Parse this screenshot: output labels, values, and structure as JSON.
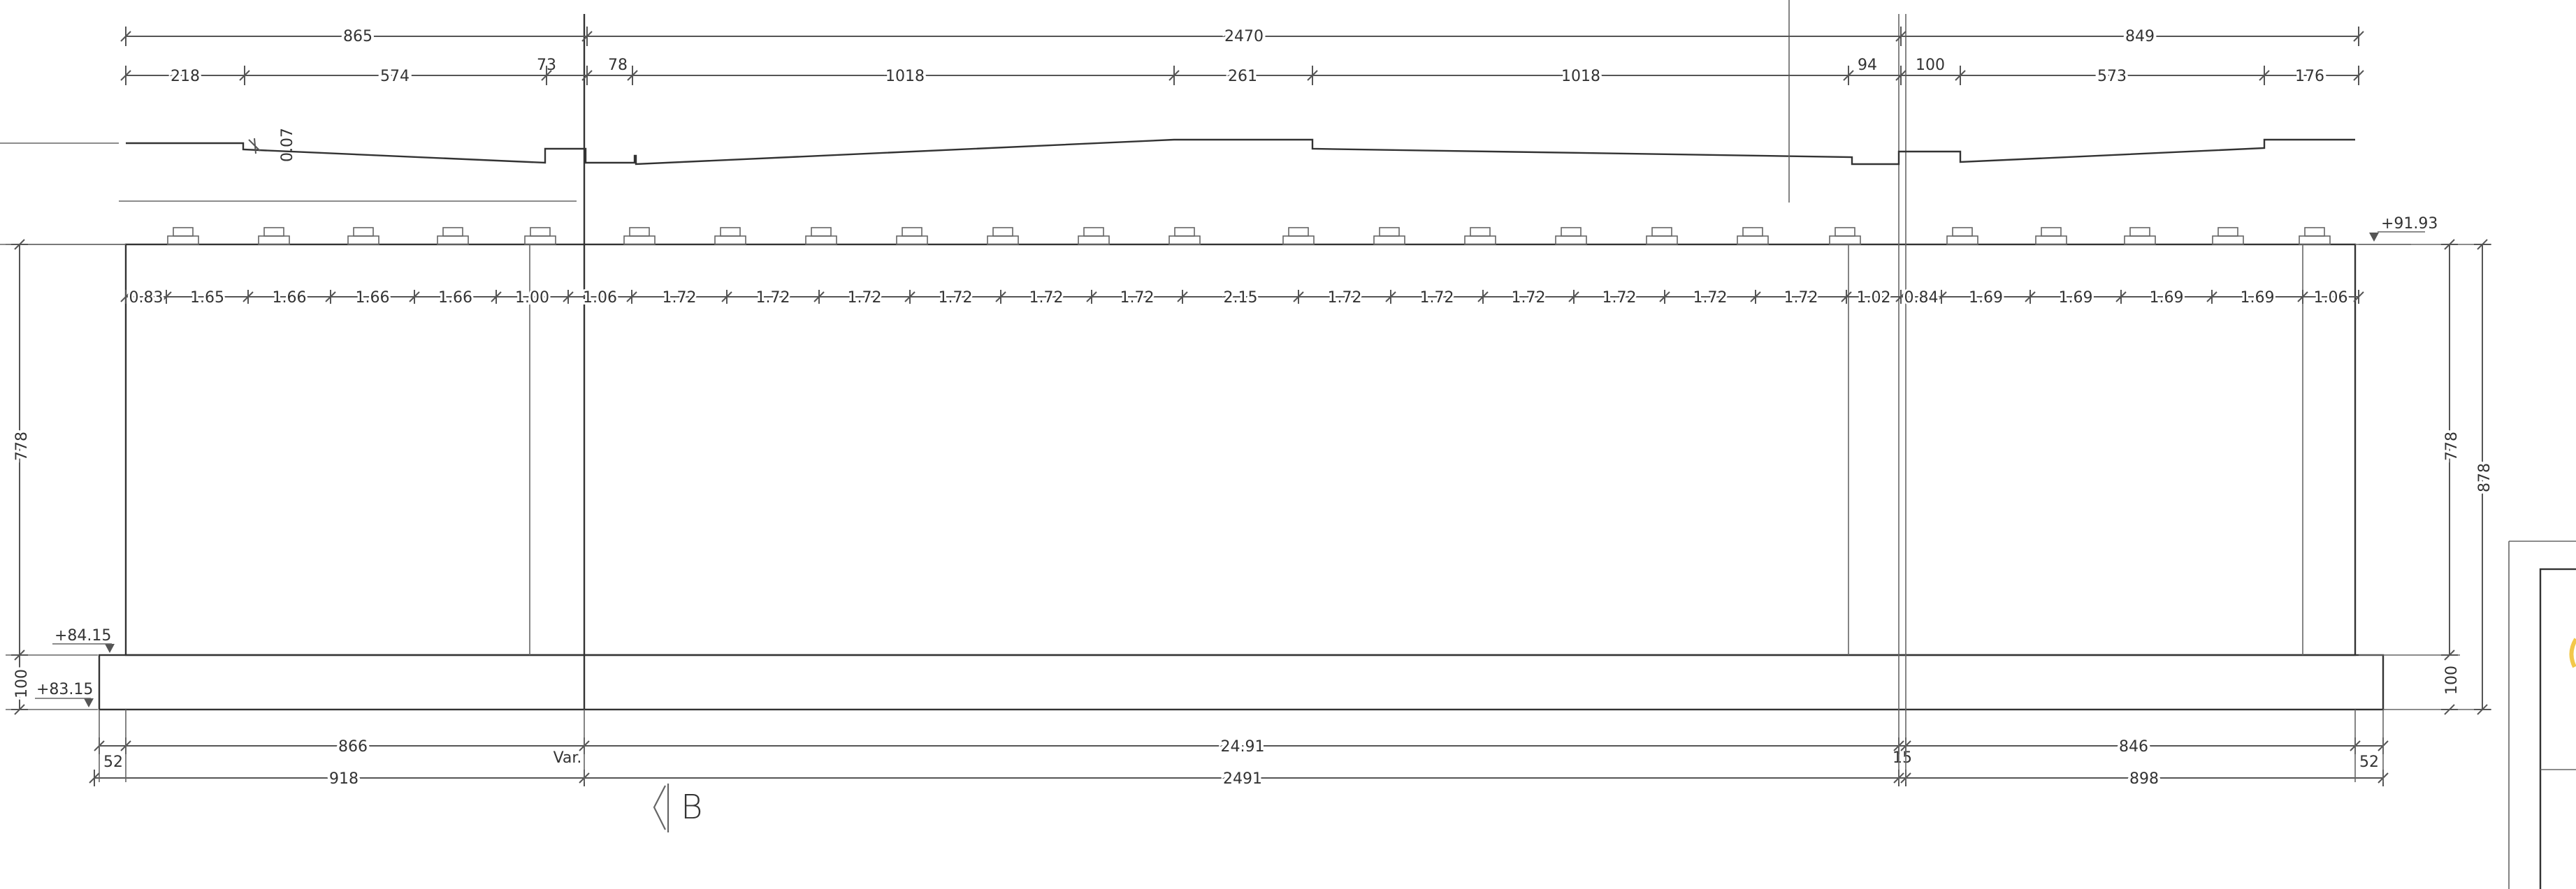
{
  "dimensions": {
    "overall_top": [
      "865",
      "2470",
      "849"
    ],
    "segments_top": [
      "218",
      "574",
      "73",
      "78",
      "1018",
      "261",
      "1018",
      "94",
      "100",
      "573",
      "176"
    ],
    "slope": "0.07",
    "spacings": [
      "0.83",
      "1.65",
      "1.66",
      "1.66",
      "1.66",
      "1.00",
      "1.06",
      "1.72",
      "1.72",
      "1.72",
      "1.72",
      "1.72",
      "1.72",
      "2.15",
      "1.72",
      "1.72",
      "1.72",
      "1.72",
      "1.72",
      "1.72",
      "1.02",
      "0.84",
      "1.69",
      "1.69",
      "1.69",
      "1.69",
      "1.06"
    ],
    "height_left": "778",
    "footing_left": "100",
    "height_right": "778",
    "total_right": "878",
    "footing_right": "100",
    "bottom_row1": [
      "866",
      "24.91",
      "846"
    ],
    "bottom_small": [
      "52",
      "Var.",
      "15",
      "52"
    ],
    "bottom_row2": [
      "918",
      "2491",
      "898"
    ]
  },
  "levels": {
    "top": "+91.93",
    "footing_top": "+84.15",
    "footing_bottom": "+83.15"
  },
  "section_mark": "B"
}
